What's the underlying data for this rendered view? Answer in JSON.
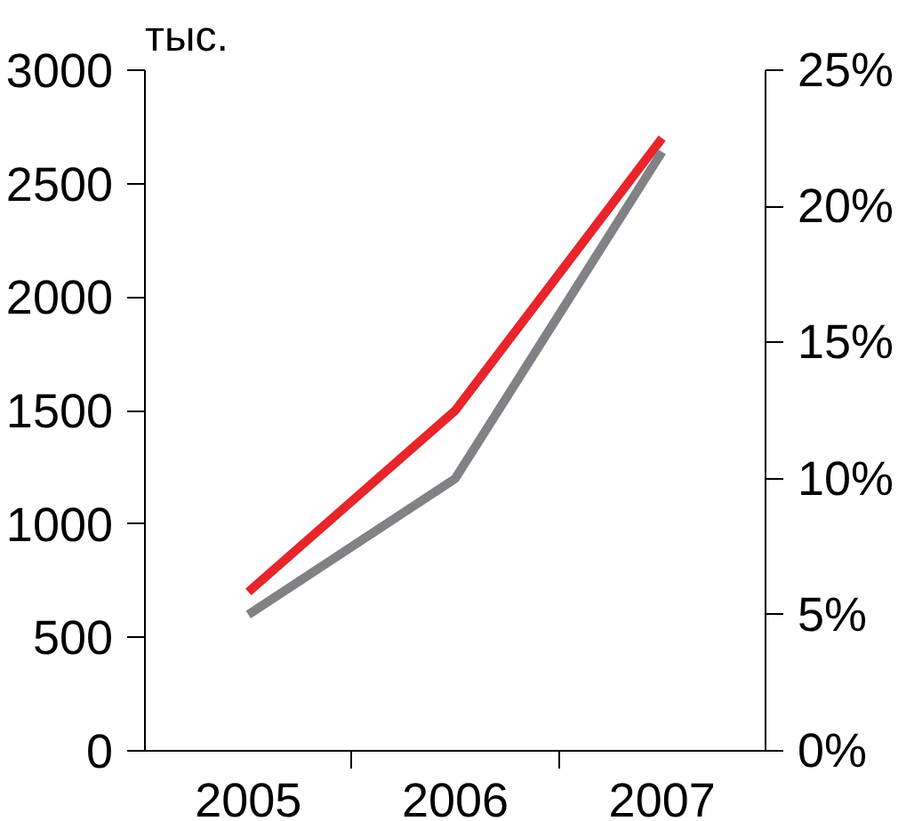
{
  "chart_data": {
    "type": "line",
    "ylabel": "тыс.",
    "categories": [
      "2005",
      "2006",
      "2007"
    ],
    "series": [
      {
        "color": "#e8252b",
        "values": [
          700,
          1500,
          2700
        ]
      },
      {
        "color": "#808285",
        "values": [
          5,
          10,
          22
        ],
        "axis": "y2"
      }
    ],
    "ylim": [
      0,
      3000
    ],
    "yticks": [
      0,
      500,
      1000,
      1500,
      2000,
      2500,
      3000
    ],
    "y2lim": [
      0,
      25
    ],
    "y2ticks": [
      {
        "value": 0,
        "label": "0%"
      },
      {
        "value": 5,
        "label": "5%"
      },
      {
        "value": 10,
        "label": "10%"
      },
      {
        "value": 15,
        "label": "15%"
      },
      {
        "value": 20,
        "label": "20%"
      },
      {
        "value": 25,
        "label": "25%"
      }
    ],
    "grid": false,
    "marker": "none",
    "line_style": "solid"
  }
}
